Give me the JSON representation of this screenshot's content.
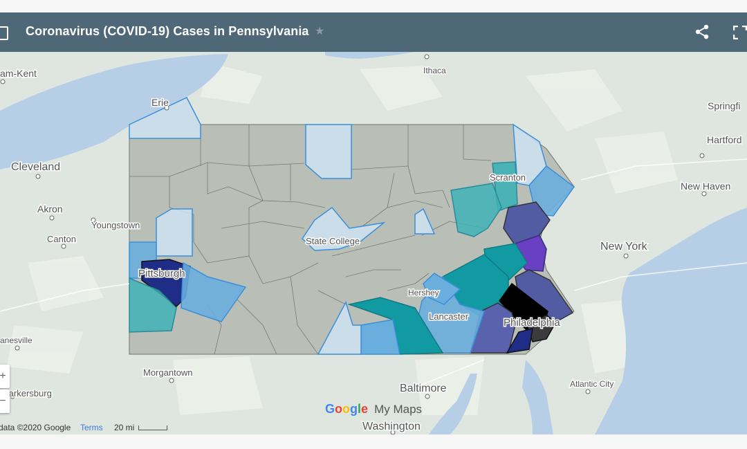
{
  "header": {
    "title": "Coronavirus (COVID-19) Cases in Pennsylvania",
    "star_icon": "star-icon",
    "share_icon": "share-icon",
    "fullscreen_icon": "fullscreen-icon"
  },
  "places": [
    {
      "id": "chatham",
      "label": "am-Kent"
    },
    {
      "id": "erie",
      "label": "Erie"
    },
    {
      "id": "ithaca",
      "label": "Ithaca"
    },
    {
      "id": "springfield",
      "label": "Springfi"
    },
    {
      "id": "hartford",
      "label": "Hartford"
    },
    {
      "id": "cleveland",
      "label": "Cleveland"
    },
    {
      "id": "akron",
      "label": "Akron"
    },
    {
      "id": "youngstown",
      "label": "Youngstown"
    },
    {
      "id": "canton",
      "label": "Canton"
    },
    {
      "id": "scranton",
      "label": "Scranton"
    },
    {
      "id": "newhaven",
      "label": "New Haven"
    },
    {
      "id": "statecollege",
      "label": "State College"
    },
    {
      "id": "newyork",
      "label": "New York"
    },
    {
      "id": "pittsburgh",
      "label": "Pittsburgh"
    },
    {
      "id": "hershey",
      "label": "Hershey"
    },
    {
      "id": "lancaster",
      "label": "Lancaster"
    },
    {
      "id": "philadelphia",
      "label": "Philadelphia"
    },
    {
      "id": "zanesville",
      "label": "anesville"
    },
    {
      "id": "morgantown",
      "label": "Morgantown"
    },
    {
      "id": "parkersburg",
      "label": "Parkersburg"
    },
    {
      "id": "baltimore",
      "label": "Baltimore"
    },
    {
      "id": "atlanticcity",
      "label": "Atlantic City"
    },
    {
      "id": "washington",
      "label": "Washington"
    }
  ],
  "logo": {
    "google": "Google",
    "mymaps": "My Maps"
  },
  "footer": {
    "data": "data ©2020 Google",
    "terms": "Terms",
    "scale": "20 mi"
  },
  "zoom": {
    "in": "+",
    "out": "−"
  },
  "colors": {
    "header": "#4e6878",
    "water": "#b7cfe6",
    "land": "#dfe5df",
    "state_gray": "#b9bfb7",
    "light_blue": "#cfe2f3",
    "mid_blue": "#6aaede",
    "teal": "#3fb1b6",
    "deep_teal": "#129aa3",
    "navy": "#1f2d86",
    "slate_blue": "#525ca3",
    "purple": "#6a40c2",
    "black": "#000000"
  }
}
